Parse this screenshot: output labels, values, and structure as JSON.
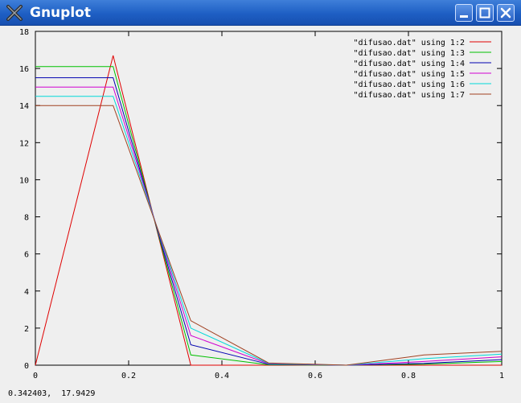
{
  "window": {
    "title": "Gnuplot",
    "icon": "x-logo-icon",
    "buttons": [
      "minimize-icon",
      "maximize-icon",
      "close-icon"
    ]
  },
  "status": {
    "coords": "0.342403,  17.9429"
  },
  "colors": {
    "titlebar": "#2a63c7",
    "plot_bg": "#efefef"
  },
  "chart_data": {
    "type": "line",
    "title": "",
    "xlabel": "",
    "ylabel": "",
    "xlim": [
      0,
      1
    ],
    "ylim": [
      0,
      18
    ],
    "x_ticks": [
      "0",
      "0.2",
      "0.4",
      "0.6",
      "0.8",
      "1"
    ],
    "y_ticks": [
      "0",
      "2",
      "4",
      "6",
      "8",
      "10",
      "12",
      "14",
      "16",
      "18"
    ],
    "grid": false,
    "legend_position": "top-right",
    "series": [
      {
        "name": "\"difusao.dat\" using 1:2",
        "color": "#e00000",
        "x": [
          0,
          0.1667,
          0.3333,
          0.5,
          0.6667,
          0.8333,
          1
        ],
        "y": [
          0,
          16.7,
          0,
          0,
          0,
          0,
          0
        ]
      },
      {
        "name": "\"difusao.dat\" using 1:3",
        "color": "#00c000",
        "x": [
          0,
          0.1667,
          0.3333,
          0.5,
          0.6667,
          0.8333,
          1
        ],
        "y": [
          16.1,
          16.1,
          0.55,
          0.02,
          0,
          0.05,
          0.2
        ]
      },
      {
        "name": "\"difusao.dat\" using 1:4",
        "color": "#0000b0",
        "x": [
          0,
          0.1667,
          0.3333,
          0.5,
          0.6667,
          0.8333,
          1
        ],
        "y": [
          15.5,
          15.5,
          1.1,
          0.05,
          0,
          0.1,
          0.3
        ]
      },
      {
        "name": "\"difusao.dat\" using 1:5",
        "color": "#d000d0",
        "x": [
          0,
          0.1667,
          0.3333,
          0.5,
          0.6667,
          0.8333,
          1
        ],
        "y": [
          15.0,
          15.0,
          1.6,
          0.08,
          0,
          0.2,
          0.45
        ]
      },
      {
        "name": "\"difusao.dat\" using 1:6",
        "color": "#00d8d8",
        "x": [
          0,
          0.1667,
          0.3333,
          0.5,
          0.6667,
          0.8333,
          1
        ],
        "y": [
          14.5,
          14.5,
          2.0,
          0.1,
          0,
          0.35,
          0.6
        ]
      },
      {
        "name": "\"difusao.dat\" using 1:7",
        "color": "#a04020",
        "x": [
          0,
          0.1667,
          0.3333,
          0.5,
          0.6667,
          0.8333,
          1
        ],
        "y": [
          14.0,
          14.0,
          2.4,
          0.12,
          0,
          0.55,
          0.75
        ]
      }
    ]
  }
}
